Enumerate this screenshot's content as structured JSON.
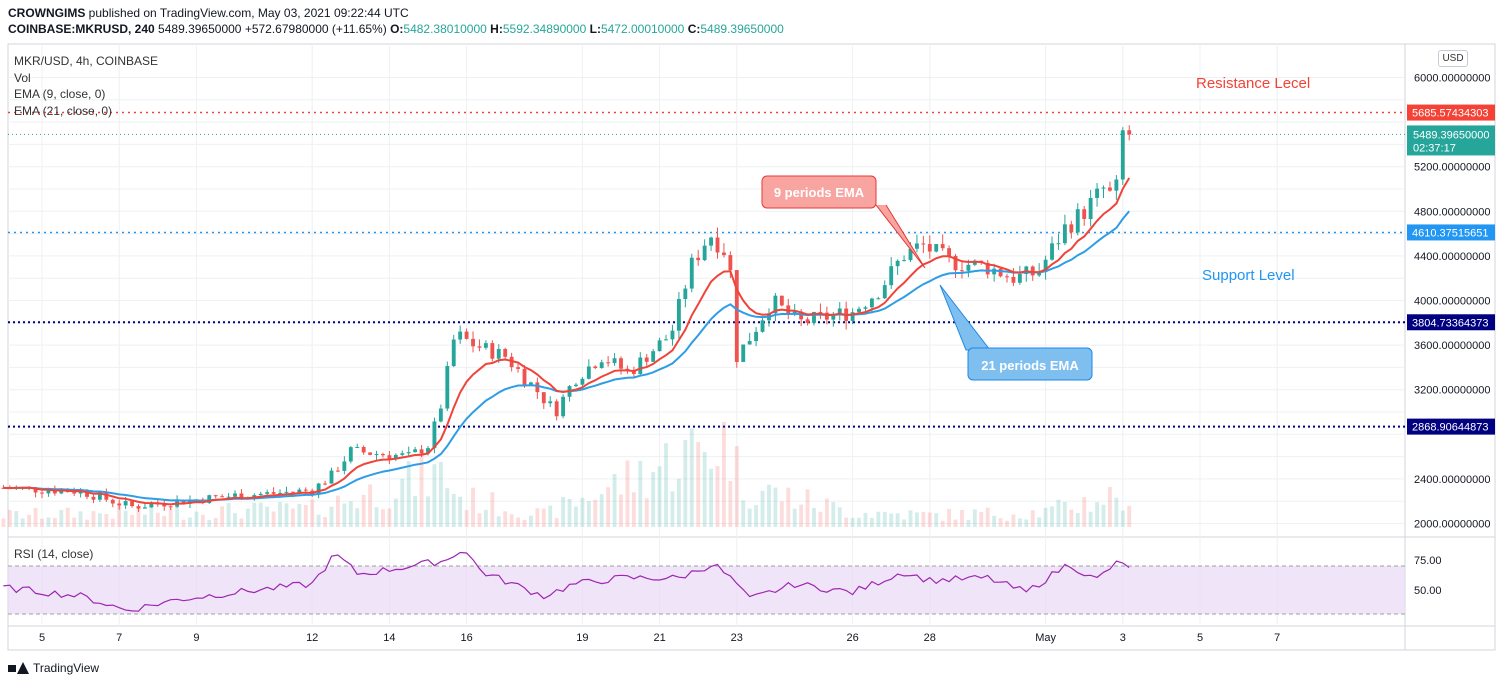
{
  "header": {
    "publisher": "CROWNGIMS",
    "published_text": "published on TradingView.com, May 03, 2021 09:22:44 UTC",
    "symbol_line": "COINBASE:MKRUSD, 240",
    "last": "5489.39650000",
    "change": "+572.67980000 (+11.65%)",
    "o_label": "O:",
    "o_value": "5482.38010000",
    "h_label": "H:",
    "h_value": "5592.34890000",
    "l_label": "L:",
    "l_value": "5472.00010000",
    "c_label": "C:",
    "c_value": "5489.39650000"
  },
  "legend": {
    "title": "MKR/USD, 4h, COINBASE",
    "vol": "Vol",
    "ema9": "EMA (9, close, 0)",
    "ema21": "EMA (21, close, 0)",
    "rsi": "RSI (14, close)"
  },
  "currency_button": "USD",
  "footer_brand": "TradingView",
  "chart_data": {
    "type": "candlestick",
    "colors": {
      "up": "#26a69a",
      "down": "#ef5350",
      "ema9": "#f0433a",
      "ema21": "#2e9de6",
      "rsi": "#9c27b0",
      "rsi_band": "#e9d8f7",
      "support": "#2196f3",
      "resistance": "#f44336",
      "level": "#000080"
    },
    "price_axis": {
      "min": 1950,
      "max": 6100,
      "ticks": [
        "6000.00000000",
        "5200.00000000",
        "4800.00000000",
        "4400.00000000",
        "4000.00000000",
        "3600.00000000",
        "3200.00000000",
        "2400.00000000",
        "2000.00000000"
      ],
      "tick_values": [
        6000,
        5200,
        4800,
        4400,
        4000,
        3600,
        3200,
        2400,
        2000
      ]
    },
    "x_axis": {
      "ticks": [
        "5",
        "7",
        "9",
        "12",
        "14",
        "16",
        "19",
        "21",
        "23",
        "26",
        "28",
        "May",
        "3",
        "5",
        "7"
      ],
      "tick_days": [
        5,
        7,
        9,
        12,
        14,
        16,
        19,
        21,
        23,
        26,
        28,
        31,
        33,
        35,
        37
      ]
    },
    "horizontal_levels": [
      {
        "label": "5685.57434303",
        "value": 5685.57434303,
        "style": "resistance"
      },
      {
        "label": "4610.37515651",
        "value": 4610.37515651,
        "style": "support"
      },
      {
        "label": "3804.73364373",
        "value": 3804.73364373,
        "style": "level"
      },
      {
        "label": "2868.90644873",
        "value": 2868.90644873,
        "style": "level"
      }
    ],
    "current_price": {
      "label": "5489.39650000",
      "countdown": "02:37:17",
      "value": 5489.3965
    },
    "annotations": {
      "resistance": "Resistance Lecel",
      "support": "Support Level",
      "ema9_callout": "9 periods EMA",
      "ema21_callout": "21 periods EMA"
    },
    "rsi": {
      "ticks": [
        "75.00",
        "50.00"
      ],
      "tick_values": [
        75,
        50
      ],
      "band": [
        30,
        70
      ]
    },
    "price_anchors": [
      [
        4,
        2320
      ],
      [
        6,
        2290
      ],
      [
        7.3,
        2150
      ],
      [
        8.5,
        2200
      ],
      [
        10,
        2250
      ],
      [
        11,
        2270
      ],
      [
        12,
        2300
      ],
      [
        12.5,
        2430
      ],
      [
        13,
        2650
      ],
      [
        14.5,
        2600
      ],
      [
        15,
        2700
      ],
      [
        15.3,
        3000
      ],
      [
        15.7,
        3700
      ],
      [
        16.2,
        3600
      ],
      [
        17,
        3500
      ],
      [
        17.8,
        3200
      ],
      [
        18.3,
        3000
      ],
      [
        18.8,
        3300
      ],
      [
        19.5,
        3500
      ],
      [
        20.2,
        3350
      ],
      [
        20.8,
        3550
      ],
      [
        21.3,
        3700
      ],
      [
        21.8,
        4300
      ],
      [
        22.3,
        4600
      ],
      [
        22.8,
        4400
      ],
      [
        23,
        3500
      ],
      [
        23.4,
        3700
      ],
      [
        23.9,
        4000
      ],
      [
        24.6,
        3800
      ],
      [
        25.3,
        3850
      ],
      [
        26,
        3900
      ],
      [
        26.7,
        4100
      ],
      [
        27.3,
        4400
      ],
      [
        27.8,
        4500
      ],
      [
        28.5,
        4350
      ],
      [
        29.5,
        4300
      ],
      [
        30.2,
        4200
      ],
      [
        30.8,
        4250
      ],
      [
        31.5,
        4650
      ],
      [
        32,
        4800
      ],
      [
        32.5,
        5000
      ],
      [
        32.8,
        4900
      ],
      [
        33,
        5500
      ],
      [
        33.2,
        5489
      ]
    ],
    "volume_anchors": [
      [
        4,
        40
      ],
      [
        12,
        60
      ],
      [
        15.4,
        180
      ],
      [
        15.8,
        100
      ],
      [
        18,
        40
      ],
      [
        22,
        260
      ],
      [
        22.8,
        300
      ],
      [
        23.1,
        140
      ],
      [
        26,
        50
      ],
      [
        28,
        40
      ],
      [
        31,
        50
      ],
      [
        32.9,
        110
      ],
      [
        33.2,
        40
      ]
    ],
    "rsi_anchors": [
      [
        4,
        52
      ],
      [
        6,
        45
      ],
      [
        7.2,
        33
      ],
      [
        8.5,
        42
      ],
      [
        10,
        48
      ],
      [
        12,
        55
      ],
      [
        12.6,
        80
      ],
      [
        13.2,
        63
      ],
      [
        15.5,
        75
      ],
      [
        15.9,
        85
      ],
      [
        16.4,
        65
      ],
      [
        18,
        45
      ],
      [
        18.8,
        55
      ],
      [
        20,
        60
      ],
      [
        21.5,
        60
      ],
      [
        22.4,
        72
      ],
      [
        23,
        55
      ],
      [
        23.3,
        42
      ],
      [
        24.5,
        55
      ],
      [
        26,
        48
      ],
      [
        27.3,
        65
      ],
      [
        28,
        58
      ],
      [
        29.5,
        60
      ],
      [
        30.5,
        48
      ],
      [
        31.6,
        72
      ],
      [
        32.3,
        58
      ],
      [
        32.8,
        72
      ],
      [
        33.2,
        70
      ]
    ]
  }
}
